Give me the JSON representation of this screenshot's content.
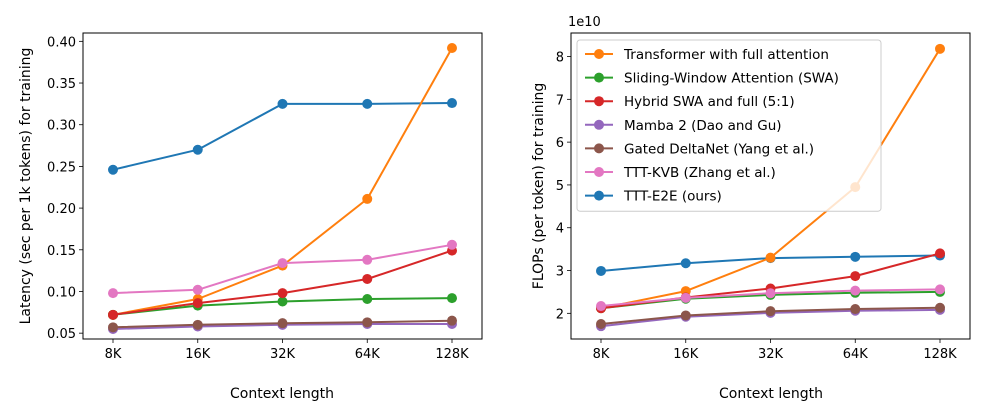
{
  "colors": {
    "transformer": "#ff7f0e",
    "swa": "#2ca02c",
    "hybrid": "#d62728",
    "mamba": "#9467bd",
    "deltanet": "#8c564b",
    "kvb": "#e377c2",
    "e2e": "#1f77b4"
  },
  "chart_data": [
    {
      "type": "line",
      "xlabel": "Context length",
      "ylabel": "Latency (sec per 1k tokens) for training",
      "categories": [
        "8K",
        "16K",
        "32K",
        "64K",
        "128K"
      ],
      "ylim": [
        0.043,
        0.41
      ],
      "yticks": [
        "0.05",
        "0.10",
        "0.15",
        "0.20",
        "0.25",
        "0.30",
        "0.35",
        "0.40"
      ],
      "ytick_values": [
        0.05,
        0.1,
        0.15,
        0.2,
        0.25,
        0.3,
        0.35,
        0.4
      ],
      "series": [
        {
          "key": "transformer",
          "values": [
            0.072,
            0.091,
            0.131,
            0.211,
            0.392
          ]
        },
        {
          "key": "swa",
          "values": [
            0.072,
            0.083,
            0.088,
            0.091,
            0.092
          ]
        },
        {
          "key": "hybrid",
          "values": [
            0.072,
            0.086,
            0.098,
            0.115,
            0.149
          ]
        },
        {
          "key": "mamba",
          "values": [
            0.055,
            0.058,
            0.06,
            0.061,
            0.061
          ]
        },
        {
          "key": "deltanet",
          "values": [
            0.057,
            0.06,
            0.062,
            0.063,
            0.065
          ]
        },
        {
          "key": "kvb",
          "values": [
            0.098,
            0.102,
            0.134,
            0.138,
            0.156
          ]
        },
        {
          "key": "e2e",
          "values": [
            0.246,
            0.27,
            0.325,
            0.325,
            0.326
          ]
        }
      ]
    },
    {
      "type": "line",
      "xlabel": "Context length",
      "ylabel": "FLOPs (per token) for training",
      "offset_text": "1e10",
      "categories": [
        "8K",
        "16K",
        "32K",
        "64K",
        "128K"
      ],
      "ylim": [
        1.4,
        8.55
      ],
      "yticks": [
        "2",
        "3",
        "4",
        "5",
        "6",
        "7",
        "8"
      ],
      "ytick_values": [
        2,
        3,
        4,
        5,
        6,
        7,
        8
      ],
      "series": [
        {
          "key": "transformer",
          "values": [
            2.12,
            2.52,
            3.3,
            4.95,
            8.18
          ]
        },
        {
          "key": "swa",
          "values": [
            2.12,
            2.34,
            2.43,
            2.48,
            2.5
          ]
        },
        {
          "key": "hybrid",
          "values": [
            2.12,
            2.37,
            2.58,
            2.87,
            3.4
          ]
        },
        {
          "key": "mamba",
          "values": [
            1.7,
            1.92,
            2.01,
            2.06,
            2.08
          ]
        },
        {
          "key": "deltanet",
          "values": [
            1.75,
            1.95,
            2.05,
            2.1,
            2.13
          ]
        },
        {
          "key": "kvb",
          "values": [
            2.17,
            2.36,
            2.47,
            2.53,
            2.56
          ]
        },
        {
          "key": "e2e",
          "values": [
            2.99,
            3.17,
            3.29,
            3.32,
            3.35
          ]
        }
      ]
    }
  ],
  "legend": [
    {
      "key": "transformer",
      "label": "Transformer with full attention"
    },
    {
      "key": "swa",
      "label": "Sliding-Window Attention (SWA)"
    },
    {
      "key": "hybrid",
      "label": "Hybrid SWA and full (5:1)"
    },
    {
      "key": "mamba",
      "label": "Mamba 2 (Dao and Gu)"
    },
    {
      "key": "deltanet",
      "label": "Gated DeltaNet (Yang et al.)"
    },
    {
      "key": "kvb",
      "label": "TTT-KVB (Zhang et al.)"
    },
    {
      "key": "e2e",
      "label": "TTT-E2E (ours)"
    }
  ]
}
